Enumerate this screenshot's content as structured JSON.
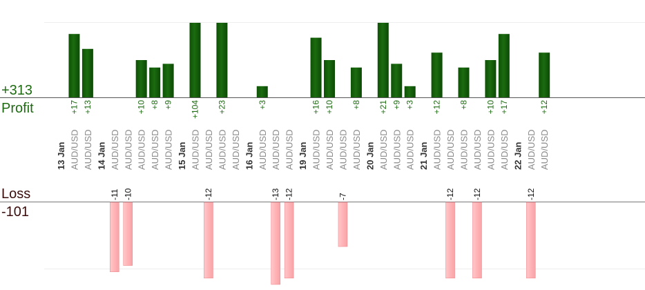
{
  "summary": {
    "profit_value": "+313",
    "profit_label": "Profit",
    "loss_label": "Loss",
    "loss_value": "-101"
  },
  "colors": {
    "profit_bar": "#1b6b0f",
    "profit_text": "#1e6b12",
    "loss_bar": "#ffb3b6",
    "loss_bar_edge": "#f08a8f",
    "loss_text": "#3a0d0d",
    "date_text": "#333333",
    "pair_text": "#8a8a8a"
  },
  "chart_data": {
    "type": "bar",
    "title": "",
    "xlabel": "",
    "ylabel": "",
    "grid": true,
    "profit_axis_max": 20,
    "loss_axis_max": 20,
    "slots": [
      {
        "date": "13 Jan"
      },
      {
        "pair": "AUD/USD",
        "value": 17,
        "label": "+17"
      },
      {
        "pair": "AUD/USD",
        "value": 13,
        "label": "+13"
      },
      {
        "date": "14 Jan"
      },
      {
        "pair": "AUD/USD",
        "value": -11,
        "label": "-11"
      },
      {
        "pair": "AUD/USD",
        "value": -10,
        "label": "-10"
      },
      {
        "pair": "AUD/USD",
        "value": 10,
        "label": "+10"
      },
      {
        "pair": "AUD/USD",
        "value": 8,
        "label": "+8"
      },
      {
        "pair": "AUD/USD",
        "value": 9,
        "label": "+9"
      },
      {
        "date": "15 Jan"
      },
      {
        "pair": "AUD/USD",
        "value": 104,
        "label": "+104"
      },
      {
        "pair": "AUD/USD",
        "value": -12,
        "label": "-12"
      },
      {
        "pair": "AUD/USD",
        "value": 23,
        "label": "+23"
      },
      {
        "pair": "AUD/USD"
      },
      {
        "date": "16 Jan"
      },
      {
        "pair": "AUD/USD",
        "value": 3,
        "label": "+3"
      },
      {
        "pair": "AUD/USD",
        "value": -13,
        "label": "-13"
      },
      {
        "pair": "AUD/USD",
        "value": -12,
        "label": "-12"
      },
      {
        "date": "19 Jan"
      },
      {
        "pair": "AUD/USD",
        "value": 16,
        "label": "+16"
      },
      {
        "pair": "AUD/USD",
        "value": 10,
        "label": "+10"
      },
      {
        "pair": "AUD/USD",
        "value": -7,
        "label": "-7"
      },
      {
        "pair": "AUD/USD",
        "value": 8,
        "label": "+8"
      },
      {
        "date": "20 Jan"
      },
      {
        "pair": "AUD/USD",
        "value": 21,
        "label": "+21"
      },
      {
        "pair": "AUD/USD",
        "value": 9,
        "label": "+9"
      },
      {
        "pair": "AUD/USD",
        "value": 3,
        "label": "+3"
      },
      {
        "date": "21 Jan"
      },
      {
        "pair": "AUD/USD",
        "value": 12,
        "label": "+12"
      },
      {
        "pair": "AUD/USD",
        "value": -12,
        "label": "-12"
      },
      {
        "pair": "AUD/USD",
        "value": 8,
        "label": "+8"
      },
      {
        "pair": "AUD/USD",
        "value": -12,
        "label": "-12"
      },
      {
        "pair": "AUD/USD",
        "value": 10,
        "label": "+10"
      },
      {
        "pair": "AUD/USD",
        "value": 17,
        "label": "+17"
      },
      {
        "date": "22 Jan"
      },
      {
        "pair": "AUD/USD",
        "value": -12,
        "label": "-12"
      },
      {
        "pair": "AUD/USD",
        "value": 12,
        "label": "+12"
      }
    ]
  }
}
